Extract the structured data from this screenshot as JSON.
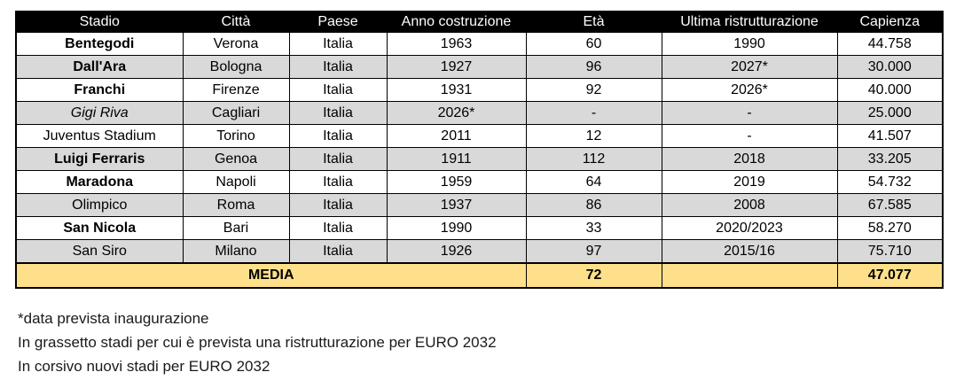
{
  "colors": {
    "header_bg": "#000000",
    "header_text": "#ffffff",
    "row_alt": "#d9d9d9",
    "summary_bg": "#ffe08a",
    "border": "#000000"
  },
  "table": {
    "columns": [
      "Stadio",
      "Città",
      "Paese",
      "Anno costruzione",
      "Età",
      "Ultima ristrutturazione",
      "Capienza"
    ],
    "rows": [
      {
        "stadio": "Bentegodi",
        "style": "bold",
        "citta": "Verona",
        "paese": "Italia",
        "anno": "1963",
        "eta": "60",
        "ultima": "1990",
        "capienza": "44.758"
      },
      {
        "stadio": "Dall'Ara",
        "style": "bold",
        "citta": "Bologna",
        "paese": "Italia",
        "anno": "1927",
        "eta": "96",
        "ultima": "2027*",
        "capienza": "30.000"
      },
      {
        "stadio": "Franchi",
        "style": "bold",
        "citta": "Firenze",
        "paese": "Italia",
        "anno": "1931",
        "eta": "92",
        "ultima": "2026*",
        "capienza": "40.000"
      },
      {
        "stadio": "Gigi Riva",
        "style": "italic",
        "citta": "Cagliari",
        "paese": "Italia",
        "anno": "2026*",
        "eta": "-",
        "ultima": "-",
        "capienza": "25.000"
      },
      {
        "stadio": "Juventus Stadium",
        "style": "regular",
        "citta": "Torino",
        "paese": "Italia",
        "anno": "2011",
        "eta": "12",
        "ultima": "-",
        "capienza": "41.507"
      },
      {
        "stadio": "Luigi Ferraris",
        "style": "bold",
        "citta": "Genoa",
        "paese": "Italia",
        "anno": "1911",
        "eta": "112",
        "ultima": "2018",
        "capienza": "33.205"
      },
      {
        "stadio": "Maradona",
        "style": "bold",
        "citta": "Napoli",
        "paese": "Italia",
        "anno": "1959",
        "eta": "64",
        "ultima": "2019",
        "capienza": "54.732"
      },
      {
        "stadio": "Olimpico",
        "style": "regular",
        "citta": "Roma",
        "paese": "Italia",
        "anno": "1937",
        "eta": "86",
        "ultima": "2008",
        "capienza": "67.585"
      },
      {
        "stadio": "San Nicola",
        "style": "bold",
        "citta": "Bari",
        "paese": "Italia",
        "anno": "1990",
        "eta": "33",
        "ultima": "2020/2023",
        "capienza": "58.270"
      },
      {
        "stadio": "San Siro",
        "style": "regular",
        "citta": "Milano",
        "paese": "Italia",
        "anno": "1926",
        "eta": "97",
        "ultima": "2015/16",
        "capienza": "75.710"
      }
    ],
    "summary": {
      "label": "MEDIA",
      "eta": "72",
      "ultima": "",
      "capienza": "47.077"
    }
  },
  "footnotes": [
    "*data prevista inaugurazione",
    "In grassetto stadi per cui è prevista una ristrutturazione per EURO 2032",
    "In corsivo nuovi stadi per EURO 2032"
  ]
}
